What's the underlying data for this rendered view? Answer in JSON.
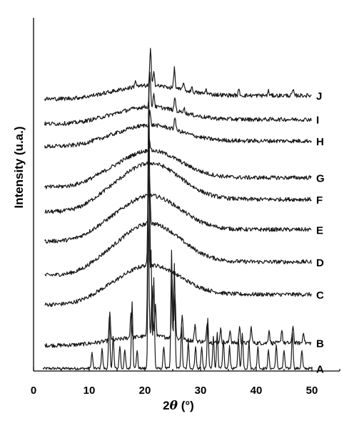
{
  "chart_data": {
    "type": "line",
    "xlabel_prefix": "2",
    "xlabel_symbol": "θ",
    "xlabel_unit": " (°)",
    "ylabel": "Intensity (u.a.)",
    "xlim": [
      0,
      55
    ],
    "x_ticks": [
      0,
      10,
      20,
      30,
      40,
      50
    ],
    "y_ticks_shown": false,
    "grid": false,
    "legend": "none",
    "series": [
      {
        "name": "A",
        "baseline": 0.04,
        "amorphous_hump": 0.0,
        "peaks": [
          [
            10.5,
            0.35
          ],
          [
            12.3,
            0.45
          ],
          [
            13.6,
            1.1
          ],
          [
            14.3,
            0.7
          ],
          [
            15.5,
            0.5
          ],
          [
            16.4,
            0.4
          ],
          [
            17.7,
            1.5
          ],
          [
            18.6,
            0.4
          ],
          [
            20.7,
            5.6
          ],
          [
            21.1,
            2.6
          ],
          [
            21.6,
            2.0
          ],
          [
            23.4,
            0.5
          ],
          [
            24.8,
            2.6
          ],
          [
            25.3,
            2.3
          ],
          [
            26.6,
            0.9
          ],
          [
            27.8,
            0.6
          ],
          [
            29.1,
            0.5
          ],
          [
            30.2,
            0.5
          ],
          [
            31.3,
            1.1
          ],
          [
            32.3,
            0.7
          ],
          [
            33.0,
            0.8
          ],
          [
            34.1,
            0.6
          ],
          [
            35.2,
            0.5
          ],
          [
            36.8,
            0.7
          ],
          [
            37.5,
            0.8
          ],
          [
            38.7,
            0.6
          ],
          [
            40.3,
            0.5
          ],
          [
            42.2,
            0.4
          ],
          [
            43.6,
            0.5
          ],
          [
            45.0,
            0.4
          ],
          [
            46.5,
            0.8
          ],
          [
            48.2,
            0.4
          ]
        ]
      },
      {
        "name": "B",
        "baseline": 0.55,
        "amorphous_hump": 0.15,
        "peaks": [
          [
            13.7,
            0.6
          ],
          [
            17.5,
            0.55
          ],
          [
            20.6,
            2.9
          ],
          [
            21.3,
            1.1
          ],
          [
            21.9,
            0.7
          ],
          [
            24.9,
            1.3
          ],
          [
            25.4,
            1.0
          ],
          [
            26.7,
            0.55
          ],
          [
            29.0,
            0.35
          ],
          [
            31.2,
            0.45
          ],
          [
            33.6,
            0.3
          ],
          [
            35.3,
            0.3
          ],
          [
            37.0,
            0.35
          ],
          [
            39.1,
            0.35
          ],
          [
            42.3,
            0.3
          ],
          [
            44.6,
            0.3
          ],
          [
            46.6,
            0.4
          ],
          [
            48.5,
            0.25
          ]
        ]
      },
      {
        "name": "C",
        "baseline": 1.45,
        "amorphous_hump": 0.65,
        "peaks": [
          [
            20.7,
            4.0
          ]
        ]
      },
      {
        "name": "D",
        "baseline": 2.1,
        "amorphous_hump": 0.85,
        "peaks": [
          [
            20.8,
            1.2
          ]
        ]
      },
      {
        "name": "E",
        "baseline": 2.85,
        "amorphous_hump": 0.75,
        "peaks": []
      },
      {
        "name": "F",
        "baseline": 3.5,
        "amorphous_hump": 0.8,
        "peaks": []
      },
      {
        "name": "G",
        "baseline": 4.05,
        "amorphous_hump": 0.6,
        "peaks": [
          [
            20.8,
            0.3
          ]
        ]
      },
      {
        "name": "H",
        "baseline": 4.95,
        "amorphous_hump": 0.35,
        "peaks": [
          [
            20.9,
            0.3
          ],
          [
            25.4,
            0.3
          ]
        ]
      },
      {
        "name": "I",
        "baseline": 5.45,
        "amorphous_hump": 0.28,
        "peaks": [
          [
            20.9,
            0.75
          ],
          [
            21.6,
            0.3
          ],
          [
            25.4,
            0.3
          ],
          [
            27.0,
            0.12
          ]
        ]
      },
      {
        "name": "J",
        "baseline": 6.0,
        "amorphous_hump": 0.22,
        "peaks": [
          [
            18.3,
            0.15
          ],
          [
            21.0,
            0.8
          ],
          [
            21.6,
            0.35
          ],
          [
            25.3,
            0.45
          ],
          [
            26.9,
            0.18
          ],
          [
            28.4,
            0.1
          ],
          [
            31.0,
            0.1
          ],
          [
            36.9,
            0.12
          ],
          [
            42.2,
            0.1
          ],
          [
            46.6,
            0.12
          ]
        ]
      }
    ]
  }
}
